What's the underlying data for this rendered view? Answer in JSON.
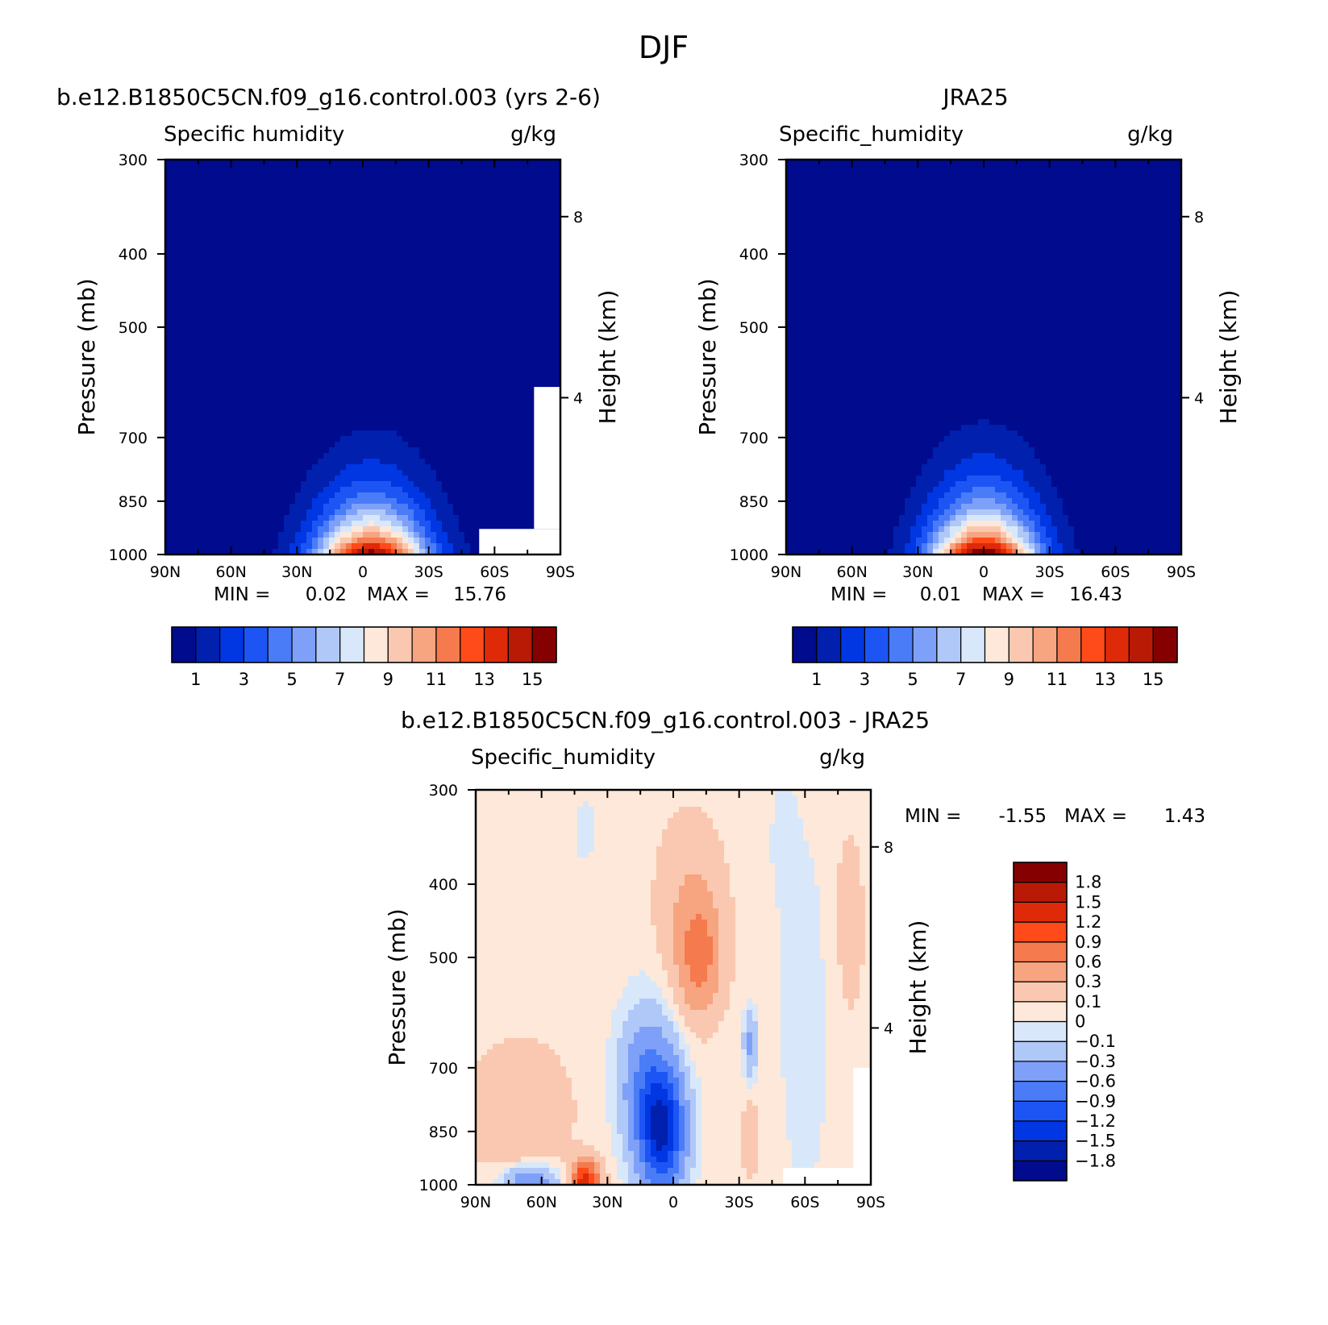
{
  "figure_title": "DJF",
  "chart_data": [
    {
      "type": "heatmap",
      "title": "b.e12.B1850C5CN.f09_g16.control.003 (yrs 2-6)",
      "variable": "Specific humidity",
      "units": "g/kg",
      "xlabel": "",
      "ylabel": "Pressure (mb)",
      "y2label": "Height (km)",
      "x_ticks": [
        "90N",
        "60N",
        "30N",
        "0",
        "30S",
        "60S",
        "90S"
      ],
      "x_tick_values": [
        90,
        60,
        30,
        0,
        -30,
        -60,
        -90
      ],
      "y_ticks": [
        "300",
        "400",
        "500",
        "700",
        "850",
        "1000"
      ],
      "y_tick_values": [
        300,
        400,
        500,
        700,
        850,
        1000
      ],
      "y2_ticks": [
        "8",
        "4"
      ],
      "y2_tick_pressures": [
        357,
        620
      ],
      "min_label": "MIN =",
      "min_value": "0.02",
      "max_label": "MAX =",
      "max_value": "15.76",
      "field": {
        "peak": 15.6,
        "lat0": -4,
        "lat_sigma": 25,
        "lat_sigma_grow": 3,
        "scale_height": 0.135,
        "floor": 0.4
      },
      "masked_regions": [
        {
          "lat": [
            -53,
            -90
          ],
          "p": [
            925,
            1000
          ]
        },
        {
          "lat": [
            -78,
            -90
          ],
          "p": [
            600,
            925
          ]
        }
      ],
      "colorbar": {
        "orientation": "horizontal",
        "levels": [
          1,
          2,
          3,
          4,
          5,
          6,
          7,
          8,
          9,
          10,
          11,
          12,
          13,
          14,
          15
        ],
        "labels": [
          "1",
          "3",
          "5",
          "7",
          "9",
          "11",
          "13",
          "15"
        ],
        "colors": [
          "#000b8d",
          "#0020ad",
          "#0037e3",
          "#1d55f5",
          "#4a7cf8",
          "#7ea0f8",
          "#b0c8f8",
          "#d8e8fa",
          "#fde8d9",
          "#fac8b0",
          "#f7a480",
          "#f57a4e",
          "#ff4a19",
          "#de2a08",
          "#b81a06",
          "#850000"
        ]
      }
    },
    {
      "type": "heatmap",
      "title": "JRA25",
      "variable": "Specific_humidity",
      "units": "g/kg",
      "xlabel": "",
      "ylabel": "Pressure (mb)",
      "y2label": "Height (km)",
      "x_ticks": [
        "90N",
        "60N",
        "30N",
        "0",
        "30S",
        "60S",
        "90S"
      ],
      "x_tick_values": [
        90,
        60,
        30,
        0,
        -30,
        -60,
        -90
      ],
      "y_ticks": [
        "300",
        "400",
        "500",
        "700",
        "850",
        "1000"
      ],
      "y_tick_values": [
        300,
        400,
        500,
        700,
        850,
        1000
      ],
      "y2_ticks": [
        "8",
        "4"
      ],
      "y2_tick_pressures": [
        357,
        620
      ],
      "min_label": "MIN =",
      "min_value": "0.01",
      "max_label": "MAX =",
      "max_value": "16.43",
      "field": {
        "peak": 16.3,
        "lat0": 0,
        "lat_sigma": 24,
        "lat_sigma_grow": 3,
        "scale_height": 0.14,
        "floor": 0.4
      },
      "masked_regions": [],
      "colorbar": {
        "orientation": "horizontal",
        "levels": [
          1,
          2,
          3,
          4,
          5,
          6,
          7,
          8,
          9,
          10,
          11,
          12,
          13,
          14,
          15
        ],
        "labels": [
          "1",
          "3",
          "5",
          "7",
          "9",
          "11",
          "13",
          "15"
        ],
        "colors": [
          "#000b8d",
          "#0020ad",
          "#0037e3",
          "#1d55f5",
          "#4a7cf8",
          "#7ea0f8",
          "#b0c8f8",
          "#d8e8fa",
          "#fde8d9",
          "#fac8b0",
          "#f7a480",
          "#f57a4e",
          "#ff4a19",
          "#de2a08",
          "#b81a06",
          "#850000"
        ]
      }
    },
    {
      "type": "heatmap",
      "title": "b.e12.B1850C5CN.f09_g16.control.003 - JRA25",
      "variable": "Specific_humidity",
      "units": "g/kg",
      "xlabel": "",
      "ylabel": "Pressure (mb)",
      "y2label": "Height (km)",
      "x_ticks": [
        "90N",
        "60N",
        "30N",
        "0",
        "30S",
        "60S",
        "90S"
      ],
      "x_tick_values": [
        90,
        60,
        30,
        0,
        -30,
        -60,
        -90
      ],
      "y_ticks": [
        "300",
        "400",
        "500",
        "700",
        "850",
        "1000"
      ],
      "y_tick_values": [
        300,
        400,
        500,
        700,
        850,
        1000
      ],
      "y2_ticks": [
        "8",
        "4"
      ],
      "y2_tick_pressures": [
        357,
        620
      ],
      "min_label": "MIN =",
      "min_value": "-1.55",
      "max_label": "MAX =",
      "max_value": "1.43",
      "diff_features": [
        {
          "lat": 5,
          "p": 850,
          "dlat": 10,
          "dlp": 0.18,
          "amp": -1.5
        },
        {
          "lat": 12,
          "p": 730,
          "dlat": 12,
          "dlp": 0.22,
          "amp": -0.6
        },
        {
          "lat": -12,
          "p": 500,
          "dlat": 9,
          "dlp": 0.16,
          "amp": 0.6
        },
        {
          "lat": -8,
          "p": 430,
          "dlat": 14,
          "dlp": 0.25,
          "amp": 0.25
        },
        {
          "lat": 40,
          "p": 990,
          "dlat": 6,
          "dlp": 0.06,
          "amp": 1.4
        },
        {
          "lat": 70,
          "p": 800,
          "dlat": 20,
          "dlp": 0.18,
          "amp": 0.25
        },
        {
          "lat": 65,
          "p": 990,
          "dlat": 12,
          "dlp": 0.05,
          "amp": -0.6
        },
        {
          "lat": -35,
          "p": 870,
          "dlat": 3,
          "dlp": 0.1,
          "amp": 0.25
        },
        {
          "lat": -60,
          "p": 600,
          "dlat": 10,
          "dlp": 0.5,
          "amp": -0.15
        },
        {
          "lat": -35,
          "p": 650,
          "dlat": 3,
          "dlp": 0.1,
          "amp": -0.4
        },
        {
          "lat": -80,
          "p": 450,
          "dlat": 10,
          "dlp": 0.4,
          "amp": 0.08
        },
        {
          "lat": 40,
          "p": 340,
          "dlat": 6,
          "dlp": 0.1,
          "amp": -0.1
        },
        {
          "lat": -50,
          "p": 350,
          "dlat": 6,
          "dlp": 0.2,
          "amp": -0.1
        }
      ],
      "diff_base": 0.05,
      "masked_regions": [
        {
          "lat": [
            -50,
            -90
          ],
          "p": [
            950,
            1000
          ]
        },
        {
          "lat": [
            -82,
            -90
          ],
          "p": [
            700,
            950
          ]
        }
      ],
      "colorbar": {
        "orientation": "vertical",
        "levels": [
          -1.8,
          -1.5,
          -1.2,
          -0.9,
          -0.6,
          -0.3,
          -0.1,
          0,
          0.1,
          0.3,
          0.6,
          0.9,
          1.2,
          1.5,
          1.8
        ],
        "labels": [
          "-1.8",
          "-1.5",
          "-1.2",
          "-0.9",
          "-0.6",
          "-0.3",
          "-0.1",
          "0",
          "0.1",
          "0.3",
          "0.6",
          "0.9",
          "1.2",
          "1.5",
          "1.8"
        ],
        "colors": [
          "#000b8d",
          "#0020ad",
          "#0037e3",
          "#1d55f5",
          "#4a7cf8",
          "#7ea0f8",
          "#b0c8f8",
          "#d8e8fa",
          "#fde8d9",
          "#fac8b0",
          "#f7a480",
          "#f57a4e",
          "#ff4a19",
          "#de2a08",
          "#b81a06",
          "#850000"
        ]
      }
    }
  ]
}
